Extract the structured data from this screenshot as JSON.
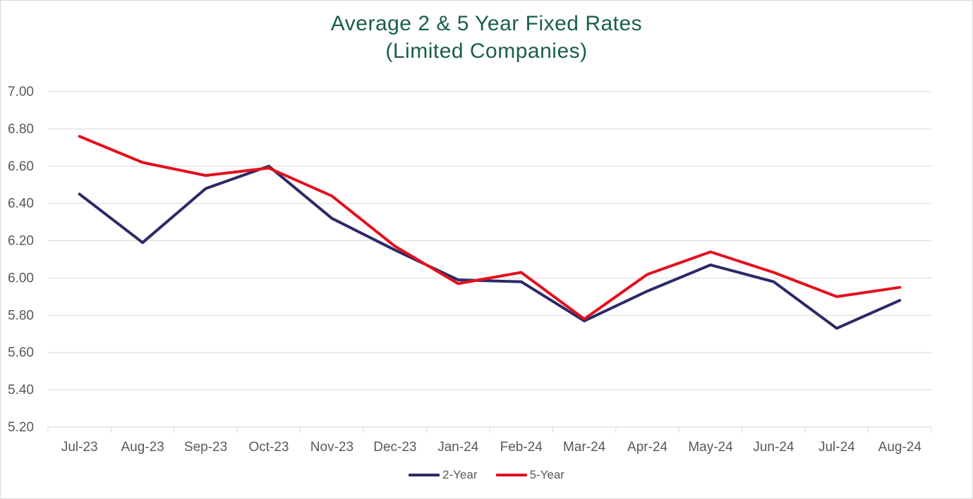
{
  "title_lines": [
    "Average 2 & 5 Year Fixed Rates",
    "(Limited Companies)"
  ],
  "colors": {
    "title": "#1a5e4a",
    "series_2yr": "#2b2a67",
    "series_5yr": "#e3101d",
    "grid": "#d9d9d9",
    "tick_text": "#595959"
  },
  "chart_data": {
    "type": "line",
    "title": "Average 2 & 5 Year Fixed Rates (Limited Companies)",
    "categories": [
      "Jul-23",
      "Aug-23",
      "Sep-23",
      "Oct-23",
      "Nov-23",
      "Dec-23",
      "Jan-24",
      "Feb-24",
      "Mar-24",
      "Apr-24",
      "May-24",
      "Jun-24",
      "Jul-24",
      "Aug-24"
    ],
    "series": [
      {
        "name": "2-Year",
        "color": "#2b2a67",
        "values": [
          6.45,
          6.19,
          6.48,
          6.6,
          6.32,
          6.15,
          5.99,
          5.98,
          5.77,
          5.93,
          6.07,
          5.98,
          5.73,
          5.88
        ]
      },
      {
        "name": "5-Year",
        "color": "#e3101d",
        "values": [
          6.76,
          6.62,
          6.55,
          6.59,
          6.44,
          6.17,
          5.97,
          6.03,
          5.78,
          6.02,
          6.14,
          6.03,
          5.9,
          5.95
        ]
      }
    ],
    "ylim": [
      5.2,
      7.0
    ],
    "yticks": [
      "5.20",
      "5.40",
      "5.60",
      "5.80",
      "6.00",
      "6.20",
      "6.40",
      "6.60",
      "6.80",
      "7.00"
    ],
    "grid": "horizontal",
    "legend_position": "bottom-center",
    "xlabel": "",
    "ylabel": ""
  }
}
